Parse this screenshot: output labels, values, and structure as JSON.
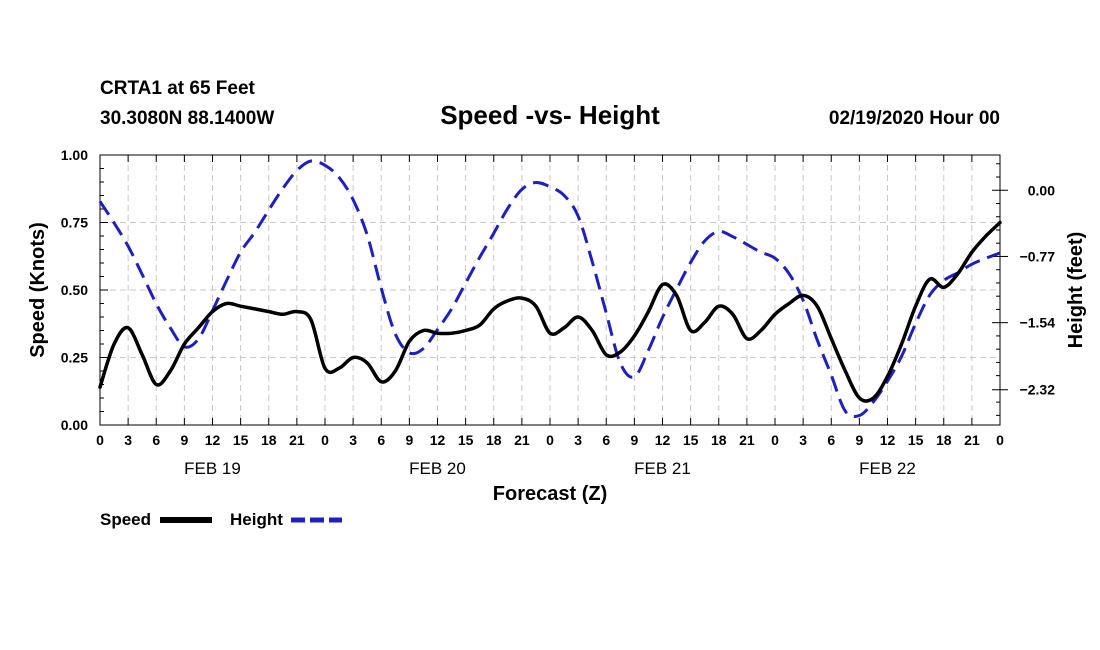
{
  "header": {
    "station": "CRTA1 at 65 Feet",
    "coords": "30.3080N 88.1400W",
    "title": "Speed -vs- Height",
    "date": "02/19/2020 Hour 00"
  },
  "chart_data": {
    "type": "line",
    "title": "Speed -vs- Height",
    "xlabel": "Forecast (Z)",
    "ylabel_left": "Speed (Knots)",
    "ylabel_right": "Height (feet)",
    "x_unit": "forecast hours",
    "xlim": [
      0,
      96
    ],
    "ylim_left": [
      0,
      1.0
    ],
    "ylim_right": [
      -2.73,
      0.41
    ],
    "left_ticks": [
      "0.00",
      "0.25",
      "0.50",
      "0.75",
      "1.00"
    ],
    "left_tick_values": [
      0,
      0.25,
      0.5,
      0.75,
      1.0
    ],
    "right_ticks": [
      "0.00",
      "−0.77",
      "−1.54",
      "−2.32"
    ],
    "right_tick_values": [
      0,
      -0.77,
      -1.54,
      -2.32
    ],
    "x_tick_hours": [
      0,
      3,
      6,
      9,
      12,
      15,
      18,
      21,
      24,
      27,
      30,
      33,
      36,
      39,
      42,
      45,
      48,
      51,
      54,
      57,
      60,
      63,
      66,
      69,
      72,
      75,
      78,
      81,
      84,
      87,
      90,
      93,
      96
    ],
    "x_tick_labels": [
      "0",
      "3",
      "6",
      "9",
      "12",
      "15",
      "18",
      "21",
      "0",
      "3",
      "6",
      "9",
      "12",
      "15",
      "18",
      "21",
      "0",
      "3",
      "6",
      "9",
      "12",
      "15",
      "18",
      "21",
      "0",
      "3",
      "6",
      "9",
      "12",
      "15",
      "18",
      "21",
      "0"
    ],
    "day_labels": [
      {
        "label": "FEB 19",
        "hour": 12
      },
      {
        "label": "FEB 20",
        "hour": 36
      },
      {
        "label": "FEB 21",
        "hour": 60
      },
      {
        "label": "FEB 22",
        "hour": 84
      }
    ],
    "grid": true,
    "legend_position": "bottom-left",
    "series": [
      {
        "name": "Speed",
        "axis": "left",
        "color": "#000000",
        "style": "solid",
        "points": [
          [
            0,
            0.14
          ],
          [
            1.5,
            0.3
          ],
          [
            3,
            0.36
          ],
          [
            4.5,
            0.26
          ],
          [
            6,
            0.15
          ],
          [
            7.5,
            0.2
          ],
          [
            9,
            0.3
          ],
          [
            10.5,
            0.36
          ],
          [
            12,
            0.42
          ],
          [
            13.5,
            0.45
          ],
          [
            15,
            0.44
          ],
          [
            16.5,
            0.43
          ],
          [
            18,
            0.42
          ],
          [
            19.5,
            0.41
          ],
          [
            21,
            0.42
          ],
          [
            22.5,
            0.39
          ],
          [
            24,
            0.21
          ],
          [
            25.5,
            0.21
          ],
          [
            27,
            0.25
          ],
          [
            28.5,
            0.23
          ],
          [
            30,
            0.16
          ],
          [
            31.5,
            0.2
          ],
          [
            33,
            0.31
          ],
          [
            34.5,
            0.35
          ],
          [
            36,
            0.34
          ],
          [
            37.5,
            0.34
          ],
          [
            39,
            0.35
          ],
          [
            40.5,
            0.37
          ],
          [
            42,
            0.43
          ],
          [
            43.5,
            0.46
          ],
          [
            45,
            0.47
          ],
          [
            46.5,
            0.44
          ],
          [
            48,
            0.34
          ],
          [
            49.5,
            0.36
          ],
          [
            51,
            0.4
          ],
          [
            52.5,
            0.35
          ],
          [
            54,
            0.26
          ],
          [
            55.5,
            0.27
          ],
          [
            57,
            0.33
          ],
          [
            58.5,
            0.42
          ],
          [
            60,
            0.52
          ],
          [
            61.5,
            0.48
          ],
          [
            63,
            0.35
          ],
          [
            64.5,
            0.38
          ],
          [
            66,
            0.44
          ],
          [
            67.5,
            0.41
          ],
          [
            69,
            0.32
          ],
          [
            70.5,
            0.35
          ],
          [
            72,
            0.41
          ],
          [
            73.5,
            0.45
          ],
          [
            75,
            0.48
          ],
          [
            76.5,
            0.44
          ],
          [
            78,
            0.32
          ],
          [
            79.5,
            0.2
          ],
          [
            81,
            0.1
          ],
          [
            82.5,
            0.1
          ],
          [
            84,
            0.18
          ],
          [
            85.5,
            0.3
          ],
          [
            87,
            0.44
          ],
          [
            88.5,
            0.54
          ],
          [
            90,
            0.51
          ],
          [
            91.5,
            0.56
          ],
          [
            93,
            0.64
          ],
          [
            94.5,
            0.7
          ],
          [
            96,
            0.75
          ]
        ]
      },
      {
        "name": "Height",
        "axis": "right",
        "color": "#1f1fbf",
        "style": "dashed",
        "points": [
          [
            0,
            -0.13
          ],
          [
            1.5,
            -0.38
          ],
          [
            3,
            -0.65
          ],
          [
            4.5,
            -0.98
          ],
          [
            6,
            -1.32
          ],
          [
            7.5,
            -1.6
          ],
          [
            9,
            -1.82
          ],
          [
            10.5,
            -1.73
          ],
          [
            12,
            -1.4
          ],
          [
            13.5,
            -1.05
          ],
          [
            15,
            -0.72
          ],
          [
            16.5,
            -0.49
          ],
          [
            18,
            -0.23
          ],
          [
            19.5,
            0.02
          ],
          [
            21,
            0.23
          ],
          [
            22.5,
            0.34
          ],
          [
            24,
            0.29
          ],
          [
            25.5,
            0.15
          ],
          [
            27,
            -0.11
          ],
          [
            28.5,
            -0.52
          ],
          [
            30,
            -1.14
          ],
          [
            31.5,
            -1.67
          ],
          [
            33,
            -1.89
          ],
          [
            34.5,
            -1.84
          ],
          [
            36,
            -1.62
          ],
          [
            37.5,
            -1.38
          ],
          [
            39,
            -1.08
          ],
          [
            40.5,
            -0.78
          ],
          [
            42,
            -0.5
          ],
          [
            43.5,
            -0.21
          ],
          [
            45,
            0.01
          ],
          [
            46.5,
            0.09
          ],
          [
            48,
            0.04
          ],
          [
            49.5,
            -0.06
          ],
          [
            51,
            -0.3
          ],
          [
            52.5,
            -0.83
          ],
          [
            54,
            -1.43
          ],
          [
            55.5,
            -2.01
          ],
          [
            57,
            -2.17
          ],
          [
            58.5,
            -1.86
          ],
          [
            60,
            -1.48
          ],
          [
            61.5,
            -1.15
          ],
          [
            63,
            -0.84
          ],
          [
            64.5,
            -0.59
          ],
          [
            66,
            -0.48
          ],
          [
            67.5,
            -0.54
          ],
          [
            69,
            -0.63
          ],
          [
            70.5,
            -0.72
          ],
          [
            72,
            -0.79
          ],
          [
            73.5,
            -0.97
          ],
          [
            75,
            -1.28
          ],
          [
            76.5,
            -1.74
          ],
          [
            78,
            -2.15
          ],
          [
            79.5,
            -2.57
          ],
          [
            81,
            -2.62
          ],
          [
            82.5,
            -2.46
          ],
          [
            84,
            -2.22
          ],
          [
            85.5,
            -1.93
          ],
          [
            87,
            -1.55
          ],
          [
            88.5,
            -1.22
          ],
          [
            90,
            -1.05
          ],
          [
            91.5,
            -0.96
          ],
          [
            93,
            -0.86
          ],
          [
            94.5,
            -0.79
          ],
          [
            96,
            -0.73
          ]
        ]
      }
    ]
  },
  "legend": {
    "speed_label": "Speed",
    "height_label": "Height"
  }
}
